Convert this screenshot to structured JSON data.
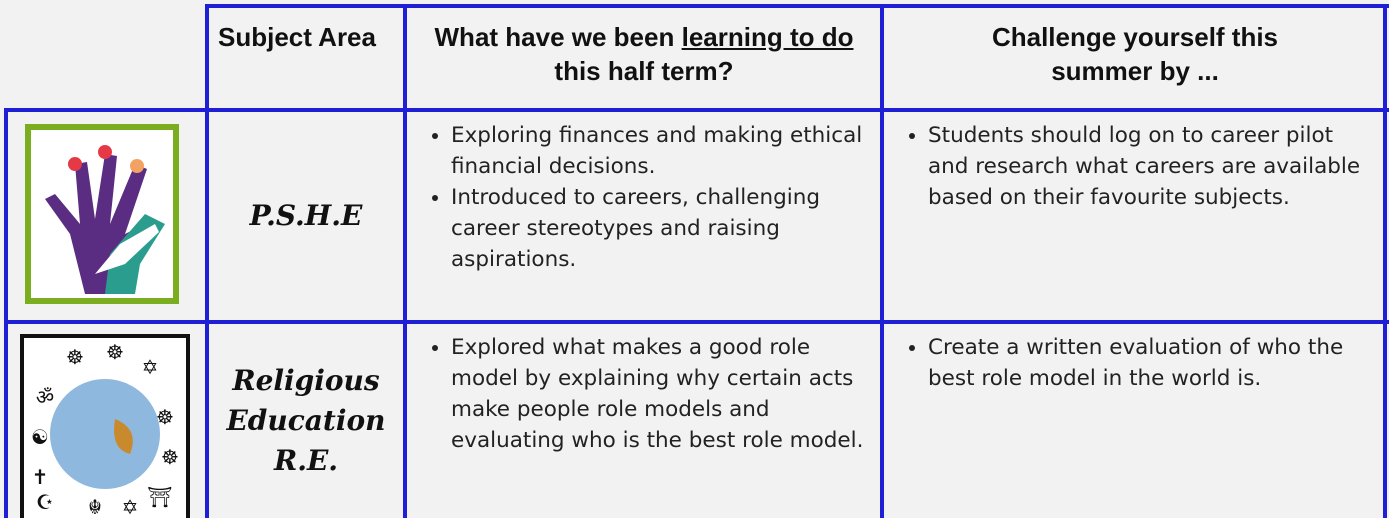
{
  "header": {
    "subject": "Subject Area",
    "learning": {
      "before": "What have we been",
      "underlined": "learning to do",
      "after": "this half term?"
    },
    "challenge": "Challenge yourself this summer by ..."
  },
  "rows": [
    {
      "subject": "P.S.H.E",
      "learning": [
        "Exploring finances and making ethical financial decisions.",
        "Introduced to careers, challenging career stereotypes and raising aspirations."
      ],
      "challenge": [
        "Students should log on to career pilot and research what careers are available based on their favourite subjects."
      ]
    },
    {
      "subject": "Religious Education R.E.",
      "learning": [
        "Explored what makes a good role model by explaining why certain acts make people role models and evaluating who is the best role model."
      ],
      "challenge": [
        "Create a written evaluation of who the best role model in the world is."
      ]
    }
  ]
}
